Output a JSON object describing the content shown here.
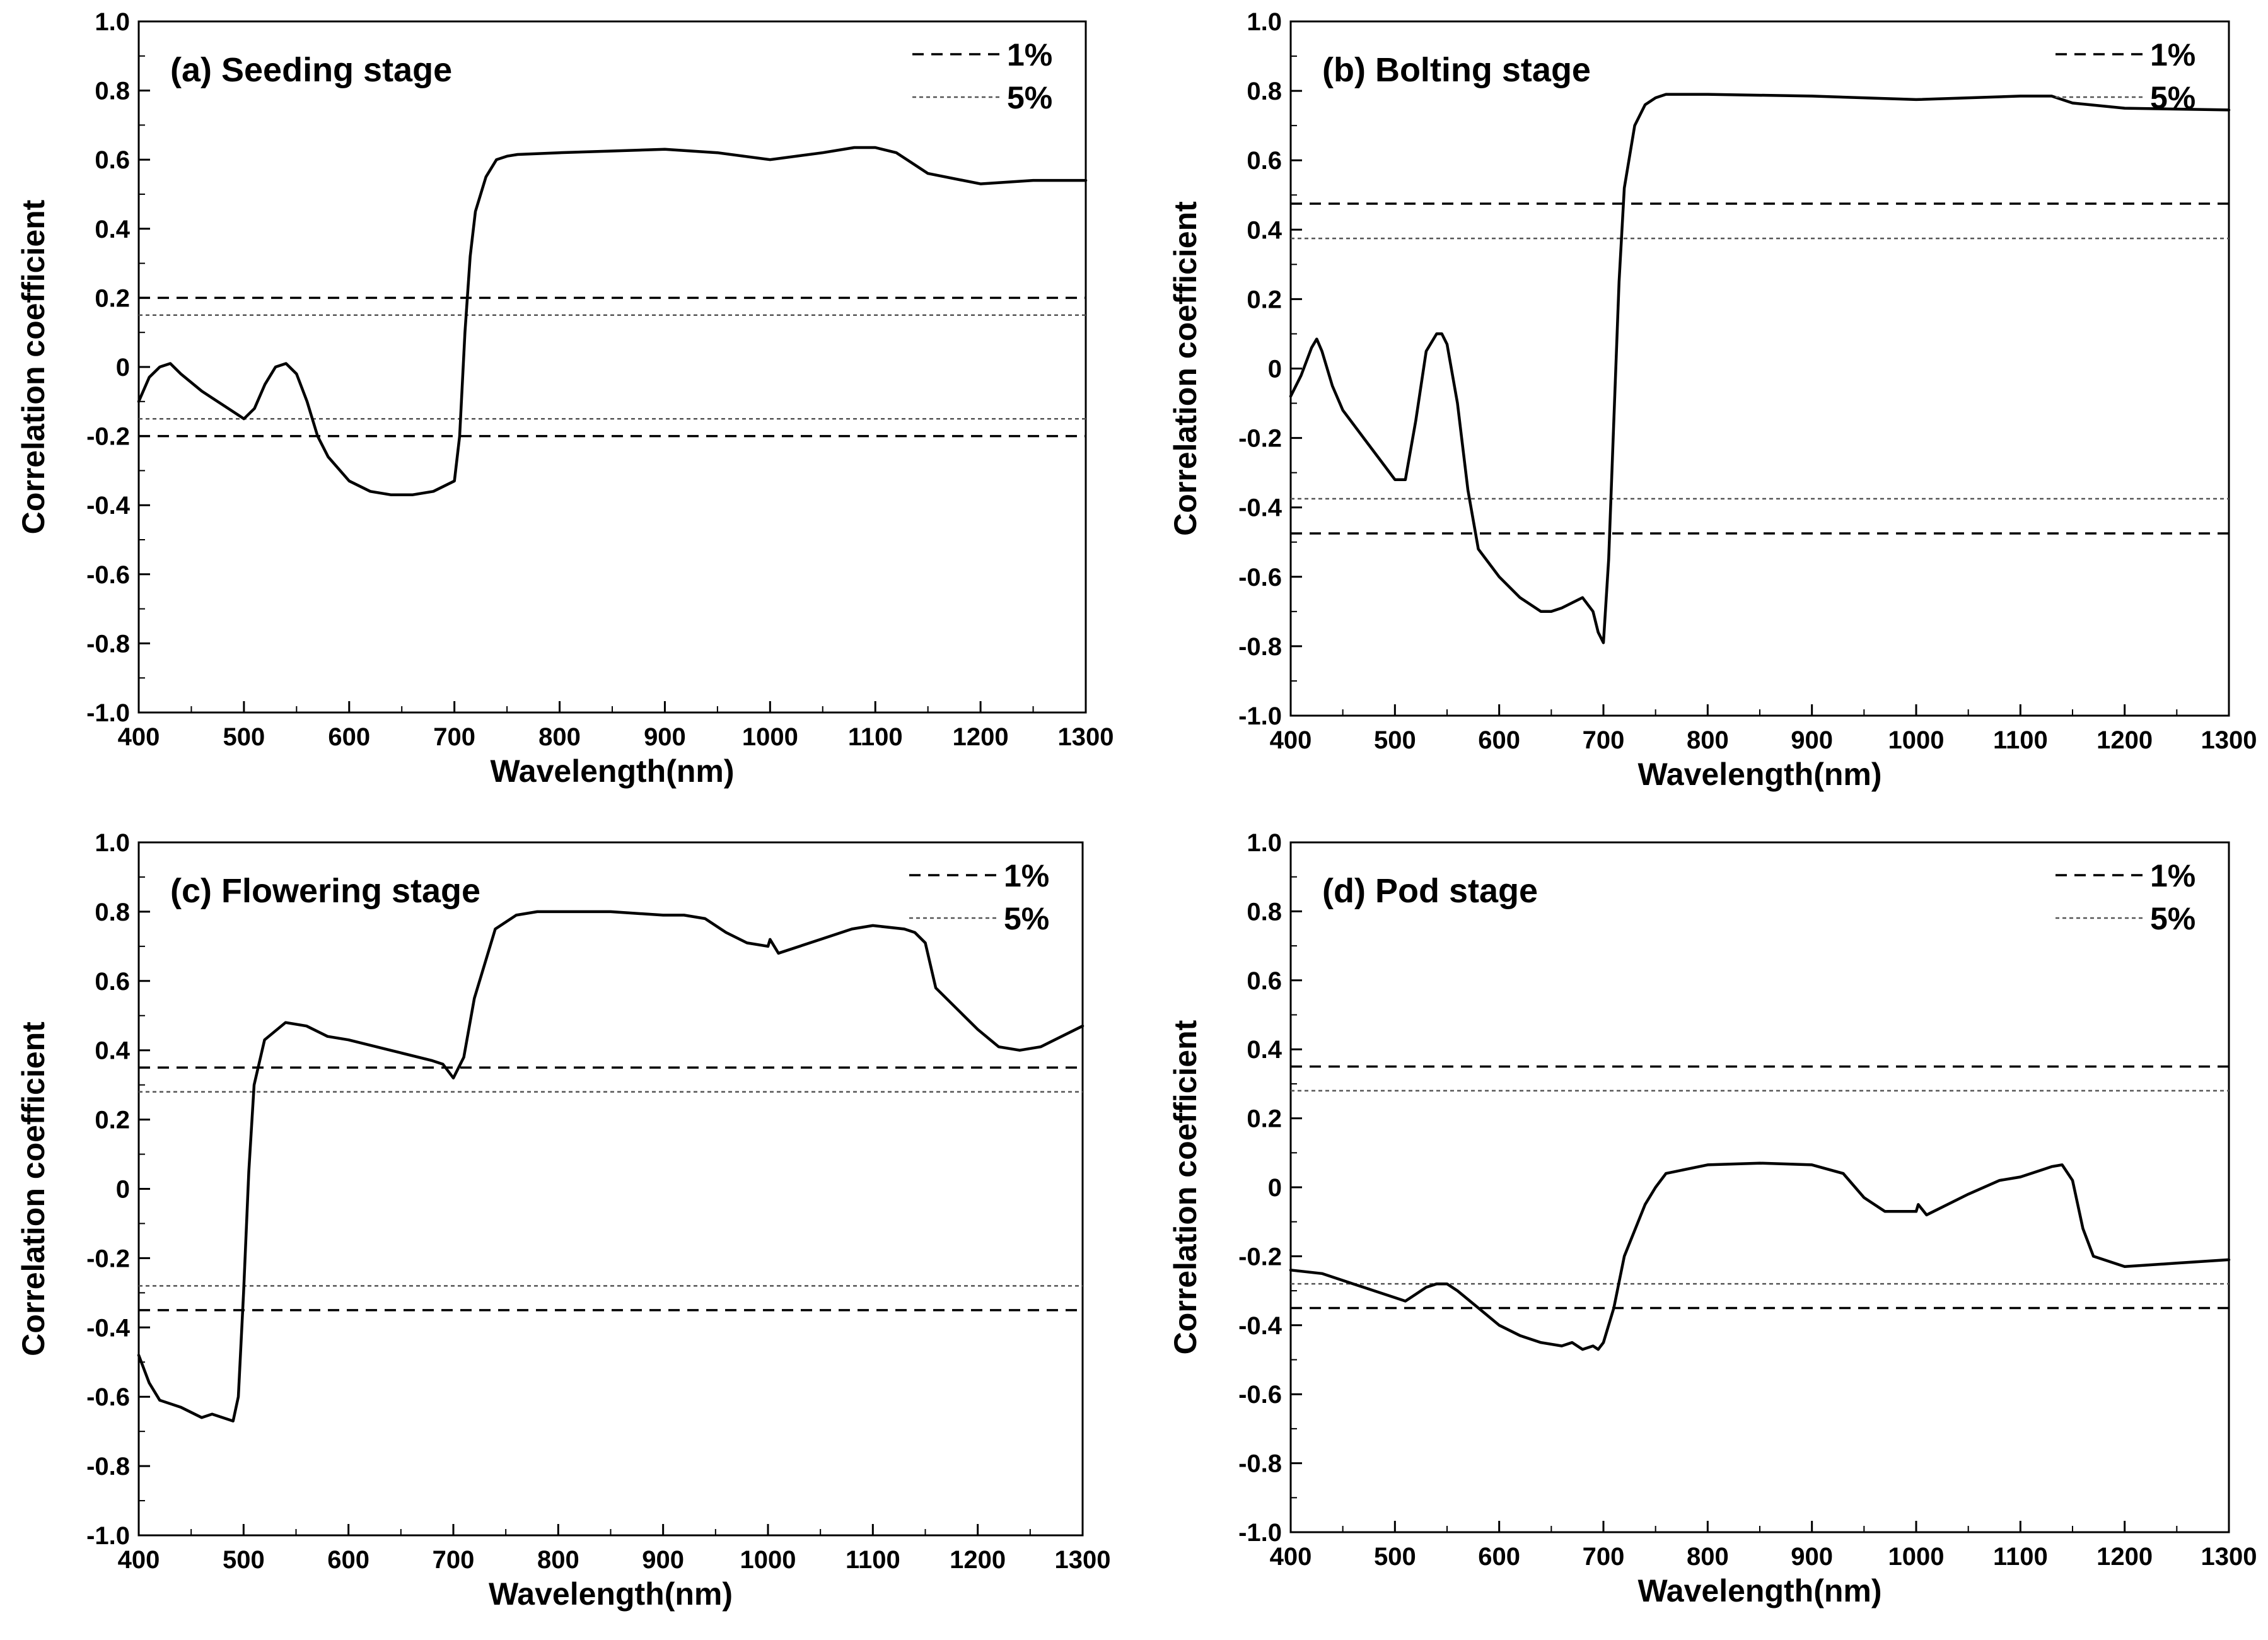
{
  "chart_data": [
    {
      "type": "line",
      "title": "(a) Seeding stage",
      "xlabel": "Wavelength(nm)",
      "ylabel": "Correlation coefficient",
      "xlim": [
        400,
        1300
      ],
      "ylim": [
        -1.0,
        1.0
      ],
      "xticks": [
        "400",
        "500",
        "600",
        "700",
        "800",
        "900",
        "1000",
        "1100",
        "1200",
        "1300"
      ],
      "yticks": [
        "-1.0",
        "-0.8",
        "-0.6",
        "-0.4",
        "-0.2",
        "0",
        "0.2",
        "0.4",
        "0.6",
        "0.8",
        "1.0"
      ],
      "legend": [
        {
          "label": "1%",
          "style": "dashed"
        },
        {
          "label": "5%",
          "style": "dotted"
        }
      ],
      "thresholds": {
        "p1": 0.2,
        "p5": 0.15
      },
      "series": [
        {
          "name": "Correlation coefficient",
          "x": [
            400,
            410,
            420,
            430,
            440,
            460,
            480,
            500,
            510,
            520,
            530,
            540,
            550,
            560,
            570,
            580,
            600,
            620,
            640,
            660,
            680,
            700,
            705,
            710,
            715,
            720,
            730,
            740,
            750,
            760,
            800,
            850,
            900,
            950,
            1000,
            1050,
            1080,
            1100,
            1120,
            1150,
            1200,
            1250,
            1300
          ],
          "y": [
            -0.1,
            -0.03,
            0.0,
            0.01,
            -0.02,
            -0.07,
            -0.11,
            -0.15,
            -0.12,
            -0.05,
            0.0,
            0.01,
            -0.02,
            -0.1,
            -0.2,
            -0.26,
            -0.33,
            -0.36,
            -0.37,
            -0.37,
            -0.36,
            -0.33,
            -0.2,
            0.1,
            0.32,
            0.45,
            0.55,
            0.6,
            0.61,
            0.615,
            0.62,
            0.625,
            0.63,
            0.62,
            0.6,
            0.62,
            0.635,
            0.635,
            0.62,
            0.56,
            0.53,
            0.54,
            0.54
          ]
        }
      ]
    },
    {
      "type": "line",
      "title": "(b) Bolting stage",
      "xlabel": "Wavelength(nm)",
      "ylabel": "Correlation coefficient",
      "xlim": [
        400,
        1300
      ],
      "ylim": [
        -1.0,
        1.0
      ],
      "xticks": [
        "400",
        "500",
        "600",
        "700",
        "800",
        "900",
        "1000",
        "1100",
        "1200",
        "1300"
      ],
      "yticks": [
        "-1.0",
        "-0.8",
        "-0.6",
        "-0.4",
        "-0.2",
        "0",
        "0.2",
        "0.4",
        "0.6",
        "0.8",
        "1.0"
      ],
      "legend": [
        {
          "label": "1%",
          "style": "dashed"
        },
        {
          "label": "5%",
          "style": "dotted"
        }
      ],
      "thresholds": {
        "p1": 0.475,
        "p5": 0.375
      },
      "series": [
        {
          "name": "Correlation coefficient",
          "x": [
            400,
            410,
            420,
            425,
            430,
            440,
            450,
            470,
            490,
            500,
            510,
            520,
            530,
            540,
            545,
            550,
            560,
            570,
            580,
            600,
            620,
            640,
            650,
            660,
            680,
            690,
            695,
            700,
            705,
            710,
            715,
            720,
            730,
            740,
            750,
            760,
            800,
            900,
            1000,
            1100,
            1130,
            1150,
            1200,
            1300
          ],
          "y": [
            -0.08,
            -0.02,
            0.06,
            0.085,
            0.05,
            -0.05,
            -0.12,
            -0.2,
            -0.28,
            -0.32,
            -0.32,
            -0.15,
            0.05,
            0.1,
            0.1,
            0.07,
            -0.1,
            -0.35,
            -0.52,
            -0.6,
            -0.66,
            -0.7,
            -0.7,
            -0.69,
            -0.66,
            -0.7,
            -0.76,
            -0.79,
            -0.55,
            -0.15,
            0.25,
            0.52,
            0.7,
            0.76,
            0.78,
            0.79,
            0.79,
            0.785,
            0.775,
            0.785,
            0.785,
            0.765,
            0.75,
            0.745
          ]
        }
      ]
    },
    {
      "type": "line",
      "title": "(c) Flowering stage",
      "xlabel": "Wavelength(nm)",
      "ylabel": "Correlation coefficient",
      "xlim": [
        400,
        1300
      ],
      "ylim": [
        -1.0,
        1.0
      ],
      "xticks": [
        "400",
        "500",
        "600",
        "700",
        "800",
        "900",
        "1000",
        "1100",
        "1200",
        "1300"
      ],
      "yticks": [
        "-1.0",
        "-0.8",
        "-0.6",
        "-0.4",
        "-0.2",
        "0",
        "0.2",
        "0.4",
        "0.6",
        "0.8",
        "1.0"
      ],
      "legend": [
        {
          "label": "1%",
          "style": "dashed"
        },
        {
          "label": "5%",
          "style": "dotted"
        }
      ],
      "thresholds": {
        "p1": 0.35,
        "p5": 0.28
      },
      "series": [
        {
          "name": "Correlation coefficient",
          "x": [
            400,
            410,
            420,
            440,
            460,
            470,
            480,
            490,
            495,
            500,
            505,
            510,
            520,
            540,
            560,
            580,
            600,
            640,
            680,
            690,
            700,
            710,
            720,
            740,
            760,
            780,
            800,
            850,
            900,
            920,
            940,
            960,
            980,
            1000,
            1002,
            1010,
            1050,
            1080,
            1100,
            1130,
            1140,
            1150,
            1160,
            1200,
            1220,
            1240,
            1260,
            1300
          ],
          "y": [
            -0.48,
            -0.56,
            -0.61,
            -0.63,
            -0.66,
            -0.65,
            -0.66,
            -0.67,
            -0.6,
            -0.3,
            0.05,
            0.3,
            0.43,
            0.48,
            0.47,
            0.44,
            0.43,
            0.4,
            0.37,
            0.36,
            0.32,
            0.38,
            0.55,
            0.75,
            0.79,
            0.8,
            0.8,
            0.8,
            0.79,
            0.79,
            0.78,
            0.74,
            0.71,
            0.7,
            0.72,
            0.68,
            0.72,
            0.75,
            0.76,
            0.75,
            0.74,
            0.71,
            0.58,
            0.46,
            0.41,
            0.4,
            0.41,
            0.47
          ]
        }
      ]
    },
    {
      "type": "line",
      "title": "(d) Pod stage",
      "xlabel": "Wavelength(nm)",
      "ylabel": "Correlation coefficient",
      "xlim": [
        400,
        1300
      ],
      "ylim": [
        -1.0,
        1.0
      ],
      "xticks": [
        "400",
        "500",
        "600",
        "700",
        "800",
        "900",
        "1000",
        "1100",
        "1200",
        "1300"
      ],
      "yticks": [
        "-1.0",
        "-0.8",
        "-0.6",
        "-0.4",
        "-0.2",
        "0",
        "0.2",
        "0.4",
        "0.6",
        "0.8",
        "1.0"
      ],
      "legend": [
        {
          "label": "1%",
          "style": "dashed"
        },
        {
          "label": "5%",
          "style": "dotted"
        }
      ],
      "thresholds": {
        "p1": 0.35,
        "p5": 0.28
      },
      "series": [
        {
          "name": "Correlation coefficient",
          "x": [
            400,
            430,
            460,
            480,
            500,
            510,
            520,
            530,
            540,
            550,
            560,
            580,
            600,
            620,
            640,
            660,
            670,
            680,
            690,
            695,
            700,
            710,
            720,
            740,
            750,
            760,
            800,
            850,
            900,
            930,
            950,
            970,
            990,
            1000,
            1002,
            1010,
            1050,
            1080,
            1100,
            1120,
            1130,
            1140,
            1150,
            1160,
            1170,
            1200,
            1250,
            1300
          ],
          "y": [
            -0.24,
            -0.25,
            -0.28,
            -0.3,
            -0.32,
            -0.33,
            -0.31,
            -0.29,
            -0.28,
            -0.28,
            -0.3,
            -0.35,
            -0.4,
            -0.43,
            -0.45,
            -0.46,
            -0.45,
            -0.47,
            -0.46,
            -0.47,
            -0.45,
            -0.35,
            -0.2,
            -0.05,
            0.0,
            0.04,
            0.065,
            0.07,
            0.065,
            0.04,
            -0.03,
            -0.07,
            -0.07,
            -0.07,
            -0.05,
            -0.08,
            -0.02,
            0.02,
            0.03,
            0.05,
            0.06,
            0.065,
            0.02,
            -0.12,
            -0.2,
            -0.23,
            -0.22,
            -0.21
          ]
        }
      ]
    }
  ]
}
